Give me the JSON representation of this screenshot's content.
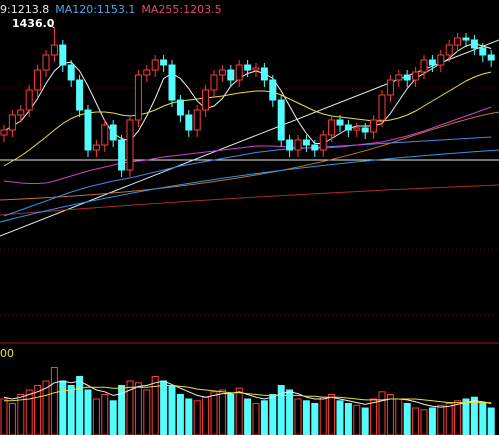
{
  "chart_data": [
    {
      "type": "candlestick",
      "legend": [
        {
          "text": "9:1213.8",
          "color": "#e8e8e8"
        },
        {
          "text": "MA120:1153.1",
          "color": "#4aa8e8"
        },
        {
          "text": "MA255:1203.5",
          "color": "#e8456e"
        }
      ],
      "annotation": "1436.0",
      "up_color": "#ff3c3c",
      "down_color": "#54fcfc",
      "ylim": [
        812,
        1492
      ],
      "candles": [
        [
          1222,
          1242,
          1208,
          1232
        ],
        [
          1232,
          1272,
          1218,
          1262
        ],
        [
          1262,
          1282,
          1248,
          1272
        ],
        [
          1272,
          1322,
          1258,
          1312
        ],
        [
          1312,
          1362,
          1298,
          1352
        ],
        [
          1352,
          1392,
          1338,
          1382
        ],
        [
          1382,
          1436,
          1368,
          1402
        ],
        [
          1402,
          1412,
          1348,
          1362
        ],
        [
          1362,
          1372,
          1318,
          1332
        ],
        [
          1332,
          1342,
          1258,
          1272
        ],
        [
          1272,
          1282,
          1178,
          1192
        ],
        [
          1192,
          1212,
          1178,
          1202
        ],
        [
          1202,
          1252,
          1188,
          1242
        ],
        [
          1242,
          1252,
          1198,
          1212
        ],
        [
          1212,
          1222,
          1138,
          1152
        ],
        [
          1152,
          1262,
          1138,
          1252
        ],
        [
          1252,
          1352,
          1238,
          1342
        ],
        [
          1342,
          1362,
          1328,
          1352
        ],
        [
          1352,
          1382,
          1338,
          1372
        ],
        [
          1372,
          1382,
          1348,
          1362
        ],
        [
          1362,
          1372,
          1278,
          1292
        ],
        [
          1292,
          1302,
          1248,
          1262
        ],
        [
          1262,
          1272,
          1218,
          1232
        ],
        [
          1232,
          1282,
          1218,
          1272
        ],
        [
          1272,
          1322,
          1258,
          1312
        ],
        [
          1312,
          1352,
          1298,
          1342
        ],
        [
          1342,
          1362,
          1328,
          1352
        ],
        [
          1352,
          1362,
          1318,
          1332
        ],
        [
          1332,
          1372,
          1318,
          1362
        ],
        [
          1362,
          1372,
          1338,
          1352
        ],
        [
          1352,
          1366,
          1338,
          1356
        ],
        [
          1356,
          1366,
          1318,
          1332
        ],
        [
          1332,
          1342,
          1278,
          1292
        ],
        [
          1292,
          1302,
          1198,
          1212
        ],
        [
          1212,
          1222,
          1178,
          1192
        ],
        [
          1192,
          1222,
          1178,
          1212
        ],
        [
          1212,
          1222,
          1188,
          1202
        ],
        [
          1202,
          1212,
          1178,
          1192
        ],
        [
          1192,
          1232,
          1178,
          1222
        ],
        [
          1222,
          1262,
          1208,
          1252
        ],
        [
          1252,
          1262,
          1228,
          1242
        ],
        [
          1242,
          1252,
          1218,
          1232
        ],
        [
          1232,
          1246,
          1218,
          1236
        ],
        [
          1236,
          1246,
          1214,
          1228
        ],
        [
          1228,
          1262,
          1214,
          1252
        ],
        [
          1252,
          1312,
          1238,
          1302
        ],
        [
          1302,
          1342,
          1288,
          1332
        ],
        [
          1332,
          1352,
          1318,
          1342
        ],
        [
          1342,
          1352,
          1318,
          1332
        ],
        [
          1332,
          1358,
          1318,
          1348
        ],
        [
          1348,
          1382,
          1334,
          1372
        ],
        [
          1372,
          1382,
          1348,
          1362
        ],
        [
          1362,
          1392,
          1348,
          1382
        ],
        [
          1382,
          1412,
          1368,
          1402
        ],
        [
          1402,
          1426,
          1388,
          1416
        ],
        [
          1416,
          1426,
          1398,
          1412
        ],
        [
          1412,
          1422,
          1382,
          1396
        ],
        [
          1396,
          1406,
          1368,
          1382
        ],
        [
          1382,
          1392,
          1358,
          1372
        ]
      ],
      "series": [
        {
          "color": "#f0f0f0",
          "values": [
            1230,
            1240,
            1250,
            1270,
            1295,
            1325,
            1350,
            1365,
            1368,
            1350,
            1320,
            1285,
            1250,
            1225,
            1215,
            1210,
            1230,
            1260,
            1295,
            1335,
            1345,
            1335,
            1315,
            1290,
            1275,
            1280,
            1295,
            1320,
            1335,
            1345,
            1350,
            1345,
            1335,
            1310,
            1280,
            1250,
            1225,
            1205,
            1205,
            1215,
            1225,
            1235,
            1240,
            1240,
            1240,
            1245,
            1265,
            1290,
            1315,
            1335,
            1345,
            1355,
            1365,
            1375,
            1390,
            1400,
            1405,
            1400,
            1395
          ]
        },
        {
          "color": "#e8e040",
          "values": [
            1160,
            1170,
            1180,
            1192,
            1205,
            1218,
            1232,
            1245,
            1255,
            1262,
            1266,
            1268,
            1268,
            1266,
            1262,
            1260,
            1262,
            1266,
            1272,
            1280,
            1286,
            1290,
            1292,
            1294,
            1296,
            1298,
            1300,
            1303,
            1306,
            1308,
            1310,
            1310,
            1308,
            1302,
            1294,
            1286,
            1278,
            1270,
            1264,
            1260,
            1258,
            1256,
            1254,
            1252,
            1250,
            1250,
            1252,
            1256,
            1262,
            1270,
            1280,
            1290,
            1300,
            1310,
            1320,
            1330,
            1338,
            1344,
            1348
          ]
        },
        {
          "color": "#3c8ce8",
          "values": [
            1060,
            1066,
            1072,
            1078,
            1084,
            1090,
            1096,
            1102,
            1108,
            1113,
            1118,
            1122,
            1126,
            1130,
            1133,
            1136,
            1140,
            1144,
            1148,
            1152,
            1156,
            1160,
            1163,
            1166,
            1169,
            1172,
            1175,
            1178,
            1181,
            1184,
            1187,
            1189,
            1191,
            1193,
            1194,
            1195,
            1196,
            1197,
            1198,
            1199,
            1200,
            1201,
            1202,
            1203,
            1204,
            1205,
            1206,
            1207,
            1208,
            1209,
            1210,
            1211,
            1212,
            1213,
            1214,
            1215,
            1216,
            1217,
            1218
          ]
        },
        {
          "color": "#d040d0",
          "values": [
            1130,
            1128,
            1126,
            1125,
            1125,
            1126,
            1130,
            1135,
            1140,
            1145,
            1150,
            1154,
            1158,
            1162,
            1166,
            1168,
            1170,
            1172,
            1175,
            1178,
            1180,
            1182,
            1184,
            1186,
            1188,
            1190,
            1192,
            1194,
            1196,
            1198,
            1200,
            1200,
            1200,
            1199,
            1198,
            1197,
            1196,
            1196,
            1196,
            1197,
            1198,
            1200,
            1202,
            1204,
            1206,
            1208,
            1212,
            1216,
            1220,
            1225,
            1230,
            1236,
            1242,
            1248,
            1254,
            1260,
            1266,
            1272,
            1278
          ]
        }
      ]
    },
    {
      "type": "bar",
      "ylabel": "00",
      "ylim": [
        0,
        100
      ],
      "values": [
        40,
        35,
        45,
        50,
        55,
        60,
        75,
        60,
        55,
        65,
        50,
        40,
        45,
        38,
        55,
        60,
        58,
        50,
        65,
        60,
        55,
        45,
        40,
        38,
        42,
        48,
        50,
        45,
        52,
        40,
        35,
        38,
        45,
        55,
        50,
        40,
        38,
        35,
        42,
        45,
        38,
        35,
        33,
        30,
        40,
        48,
        45,
        40,
        35,
        30,
        28,
        30,
        33,
        35,
        38,
        40,
        42,
        35,
        30
      ],
      "series": [
        {
          "color": "#f0f0f0",
          "values": [
            42,
            40,
            42,
            45,
            48,
            52,
            58,
            60,
            58,
            60,
            55,
            50,
            48,
            44,
            46,
            50,
            54,
            55,
            58,
            60,
            56,
            52,
            48,
            44,
            42,
            44,
            46,
            46,
            48,
            45,
            42,
            40,
            42,
            46,
            48,
            46,
            42,
            40,
            40,
            42,
            40,
            38,
            36,
            34,
            36,
            38,
            40,
            40,
            39,
            37,
            34,
            32,
            31,
            32,
            34,
            36,
            38,
            37,
            35
          ]
        },
        {
          "color": "#e8e040",
          "values": [
            38,
            38,
            39,
            40,
            42,
            44,
            47,
            49,
            50,
            52,
            53,
            53,
            53,
            52,
            52,
            53,
            53,
            53,
            54,
            55,
            55,
            54,
            53,
            51,
            50,
            49,
            48,
            47,
            47,
            46,
            45,
            44,
            44,
            44,
            44,
            44,
            43,
            43,
            42,
            42,
            42,
            41,
            40,
            39,
            39,
            39,
            40,
            40,
            40,
            40,
            39,
            38,
            37,
            36,
            36,
            36,
            36,
            36,
            36
          ]
        }
      ]
    }
  ]
}
